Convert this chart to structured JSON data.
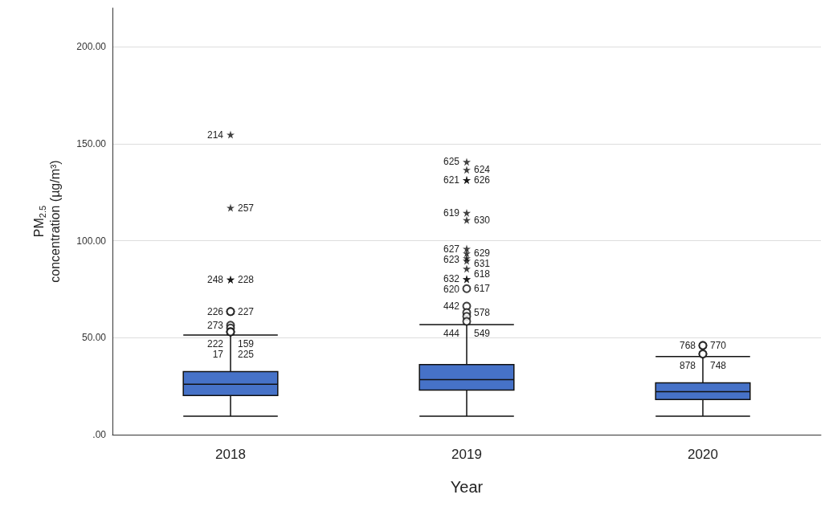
{
  "chart_data": {
    "type": "box",
    "xlabel": "Year",
    "ylabel": "PM$_{2.5}$\nconcentration (µg/m³)",
    "categories": [
      "2018",
      "2019",
      "2020"
    ],
    "color": "#4672c8",
    "boxes": [
      {
        "low": 9.5,
        "q1": 20.2,
        "median": 26,
        "q3": 32.5,
        "high": 51.4,
        "outliers": [
          154.7,
          117,
          80,
          80,
          63.5,
          63.5,
          56.4,
          55,
          53,
          53,
          53
        ]
      },
      {
        "low": 9.5,
        "q1": 23,
        "median": 28.4,
        "q3": 36.2,
        "high": 56.8,
        "outliers": [
          140.7,
          136.6,
          131.3,
          131.3,
          114.4,
          110.7,
          95.9,
          93.5,
          91,
          89.7,
          80.2,
          85.6,
          80.2,
          75.3,
          66.3,
          63,
          61,
          58.4
        ]
      },
      {
        "low": 9.5,
        "q1": 18.1,
        "median": 22.2,
        "q3": 26.7,
        "high": 40.3,
        "outliers": [
          46,
          46,
          41.6,
          41.6
        ]
      }
    ],
    "ylim": [
      0,
      220
    ],
    "yticks": [
      {
        "value": 0,
        "label": ".00"
      },
      {
        "value": 50,
        "label": "50.00"
      },
      {
        "value": 100,
        "label": "100.00"
      },
      {
        "value": 150,
        "label": "150.00"
      },
      {
        "value": 200,
        "label": "200.00"
      }
    ],
    "grid": "y",
    "annotations": [
      "214",
      "257",
      "248",
      "228",
      "226",
      "227",
      "273",
      "159",
      "222",
      "225",
      "17",
      "625",
      "624",
      "621",
      "626",
      "619",
      "630",
      "627",
      "629",
      "623",
      "631",
      "632",
      "618",
      "620",
      "617",
      "442",
      "578",
      "444",
      "549",
      "768",
      "770",
      "878",
      "748"
    ]
  }
}
